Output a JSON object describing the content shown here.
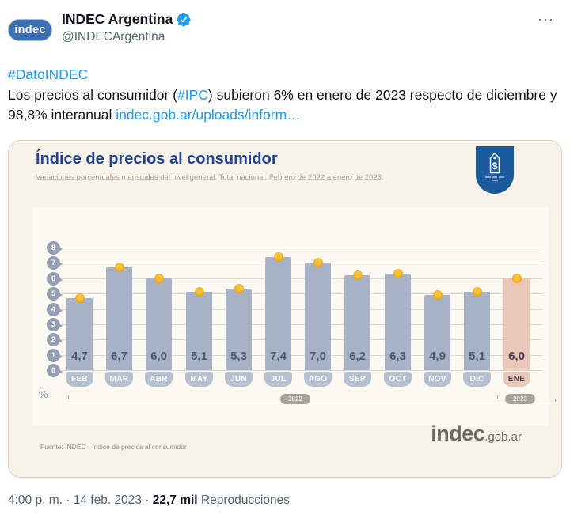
{
  "tweet": {
    "author": {
      "name": "INDEC Argentina",
      "handle": "@INDECArgentina",
      "avatar_text": "indec"
    },
    "more_icon": "···",
    "body": {
      "hashtag_line": "#DatoINDEC",
      "text_before_tag": "Los precios al consumidor (",
      "inline_hashtag": "#IPC",
      "text_after_tag": ") subieron 6% en enero de 2023 respecto de diciembre y 98,8% interanual ",
      "link_text": "indec.gob.ar/uploads/inform…"
    },
    "footer": {
      "time": "4:00 p. m.",
      "separator1": "·",
      "date": "14 feb. 2023",
      "separator2": "·",
      "views_count": "22,7 mil",
      "views_label": "Reproducciones"
    }
  },
  "chart_card": {
    "title": "Índice de precios al consumidor",
    "subtitle": "Variaciones porcentuales mensuales del nivel general. Total nacional. Febrero de 2022 a enero de 2023.",
    "unit_label": "%",
    "source": "Fuente: INDEC - Índice de precios al consumidor",
    "brand_main": "indec",
    "brand_suffix": ".gob.ar",
    "accent_blue": "#24418e",
    "badge_blue": "#1c5a9e"
  },
  "chart_data": {
    "type": "bar",
    "title": "Índice de precios al consumidor",
    "subtitle": "Variaciones porcentuales mensuales del nivel general. Total nacional. Febrero de 2022 a enero de 2023.",
    "categories": [
      "FEB",
      "MAR",
      "ABR",
      "MAY",
      "JUN",
      "JUL",
      "AGO",
      "SEP",
      "OCT",
      "NOV",
      "DIC",
      "ENE"
    ],
    "values": [
      4.7,
      6.7,
      6.0,
      5.1,
      5.3,
      7.4,
      7.0,
      6.2,
      6.3,
      4.9,
      5.1,
      6.0
    ],
    "value_labels": [
      "4,7",
      "6,7",
      "6,0",
      "5,1",
      "5,3",
      "7,4",
      "7,0",
      "6,2",
      "6,3",
      "4,9",
      "5,1",
      "6,0"
    ],
    "highlight_index": 11,
    "ylabel": "%",
    "ylim": [
      0,
      8
    ],
    "yticks": [
      0,
      1,
      2,
      3,
      4,
      5,
      6,
      7,
      8
    ],
    "grid": true,
    "legend": "none",
    "year_groups": [
      {
        "label": "2022",
        "from": "FEB",
        "to": "DIC"
      },
      {
        "label": "2023",
        "from": "ENE",
        "to": "ENE"
      }
    ],
    "colors": {
      "bar": "#a7b2c6",
      "bar_highlight": "#e9c7b6",
      "marker_dot": "#eda715",
      "axis_pin": "#949eb4",
      "month_pill": "#b6c0d1",
      "month_pill_highlight": "#e9c7b6"
    }
  }
}
